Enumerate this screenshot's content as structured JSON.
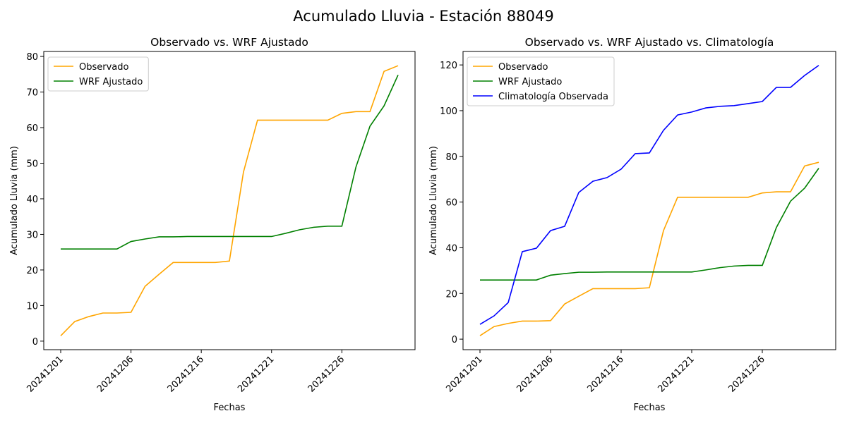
{
  "title": "Acumulado Lluvia - Estación 88049",
  "chart_data": [
    {
      "type": "line",
      "title": "Observado vs. WRF Ajustado",
      "xlabel": "Fechas",
      "ylabel": "Acumulado Lluvia (mm)",
      "categories": [
        "20241201",
        null,
        null,
        null,
        null,
        "20241206",
        null,
        null,
        null,
        null,
        "20241216",
        null,
        null,
        null,
        null,
        "20241221",
        null,
        null,
        null,
        null,
        "20241226",
        null,
        null,
        null,
        null
      ],
      "ylim": [
        -2.4,
        81.4
      ],
      "yticks": [
        0,
        10,
        20,
        30,
        40,
        50,
        60,
        70,
        80
      ],
      "legend": "upper left",
      "series": [
        {
          "name": "Observado",
          "color": "#ffa500",
          "values": [
            1.5,
            5.5,
            6.9,
            7.9,
            7.9,
            8.1,
            15.4,
            18.8,
            22.1,
            22.1,
            22.1,
            22.1,
            22.5,
            47.5,
            62.1,
            62.1,
            62.1,
            62.1,
            62.1,
            62.1,
            64.0,
            64.5,
            64.5,
            75.8,
            77.4
          ]
        },
        {
          "name": "WRF Ajustado",
          "color": "#008000",
          "values": [
            25.9,
            25.9,
            25.9,
            25.9,
            25.9,
            28.0,
            28.7,
            29.3,
            29.3,
            29.4,
            29.4,
            29.4,
            29.4,
            29.4,
            29.4,
            29.4,
            30.3,
            31.3,
            32.0,
            32.3,
            32.3,
            48.9,
            60.4,
            66.1,
            74.8
          ]
        }
      ]
    },
    {
      "type": "line",
      "title": "Observado vs. WRF Ajustado vs. Climatología",
      "xlabel": "Fechas",
      "ylabel": "Acumulado Lluvia (mm)",
      "categories": [
        "20241201",
        null,
        null,
        null,
        null,
        "20241206",
        null,
        null,
        null,
        null,
        "20241216",
        null,
        null,
        null,
        null,
        "20241221",
        null,
        null,
        null,
        null,
        "20241226",
        null,
        null,
        null,
        null
      ],
      "ylim": [
        -4.6,
        125.9
      ],
      "yticks": [
        0,
        20,
        40,
        60,
        80,
        100,
        120
      ],
      "legend": "upper left",
      "series": [
        {
          "name": "Observado",
          "color": "#ffa500",
          "values": [
            1.5,
            5.5,
            6.9,
            7.9,
            7.9,
            8.1,
            15.4,
            18.8,
            22.1,
            22.1,
            22.1,
            22.1,
            22.5,
            47.5,
            62.1,
            62.1,
            62.1,
            62.1,
            62.1,
            62.1,
            64.0,
            64.5,
            64.5,
            75.8,
            77.4
          ]
        },
        {
          "name": "WRF Ajustado",
          "color": "#008000",
          "values": [
            25.9,
            25.9,
            25.9,
            25.9,
            25.9,
            28.0,
            28.7,
            29.3,
            29.3,
            29.4,
            29.4,
            29.4,
            29.4,
            29.4,
            29.4,
            29.4,
            30.3,
            31.3,
            32.0,
            32.3,
            32.3,
            48.9,
            60.4,
            66.1,
            74.8
          ]
        },
        {
          "name": "Climatología Observada",
          "color": "#0000ff",
          "values": [
            6.5,
            10.2,
            16.0,
            38.3,
            39.8,
            47.5,
            49.4,
            64.2,
            69.1,
            70.7,
            74.4,
            81.2,
            81.5,
            91.4,
            98.1,
            99.4,
            101.2,
            101.9,
            102.2,
            103.1,
            104.0,
            110.2,
            110.2,
            115.4,
            119.8
          ]
        }
      ]
    }
  ]
}
